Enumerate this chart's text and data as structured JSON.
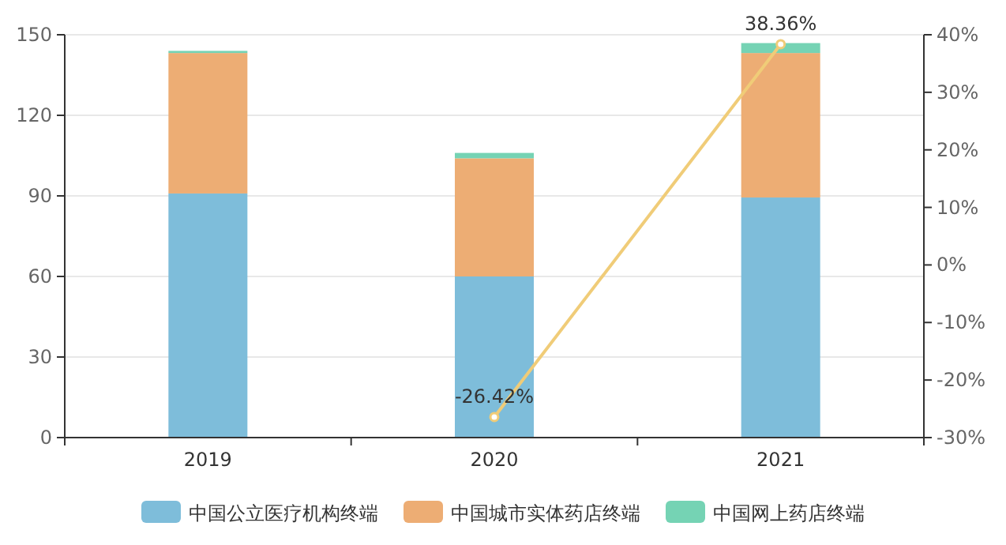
{
  "chart_data": {
    "type": "bar",
    "stacked": true,
    "categories": [
      "2019",
      "2020",
      "2021"
    ],
    "series": [
      {
        "name": "中国公立医疗机构终端",
        "color": "#7ebdda",
        "values": [
          90.9,
          60.0,
          89.4
        ]
      },
      {
        "name": "中国城市实体药店终端",
        "color": "#edad74",
        "values": [
          52.3,
          44.0,
          53.8
        ]
      },
      {
        "name": "中国网上药店终端",
        "color": "#75d3b4",
        "values": [
          0.8,
          2.0,
          3.7
        ]
      },
      {
        "type": "line",
        "axis": "y2",
        "color": "#f0cc78",
        "marker": "circle",
        "values": [
          null,
          -26.42,
          38.36
        ],
        "value_labels": [
          null,
          "-26.42%",
          "38.36%"
        ]
      }
    ],
    "ylim": [
      0,
      150
    ],
    "yticks": [
      0,
      30,
      60,
      90,
      120,
      150
    ],
    "y2lim": [
      -30,
      40
    ],
    "y2ticks": [
      {
        "value": -30,
        "label": "-30%"
      },
      {
        "value": -20,
        "label": "-20%"
      },
      {
        "value": -10,
        "label": "-10%"
      },
      {
        "value": 0,
        "label": "0%"
      },
      {
        "value": 10,
        "label": "10%"
      },
      {
        "value": 20,
        "label": "20%"
      },
      {
        "value": 30,
        "label": "30%"
      },
      {
        "value": 40,
        "label": "40%"
      }
    ],
    "grid": "y",
    "legend": "bottom"
  }
}
